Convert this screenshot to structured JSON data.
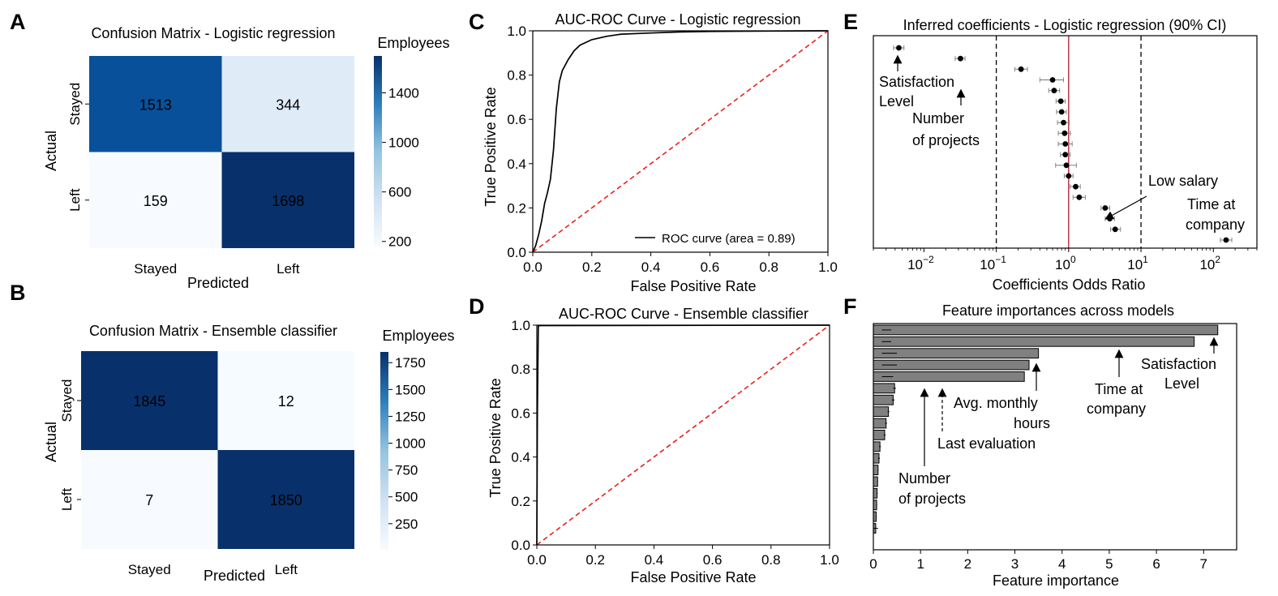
{
  "panels": {
    "A": {
      "label": "A",
      "title": "Confusion Matrix - Logistic regression",
      "xlabel": "Predicted",
      "ylabel": "Actual",
      "colorbar_label": "Employees",
      "colorbar_ticks": [
        "1400",
        "1000",
        "600",
        "200"
      ]
    },
    "B": {
      "label": "B",
      "title": "Confusion Matrix - Ensemble classifier",
      "xlabel": "Predicted",
      "ylabel": "Actual",
      "colorbar_label": "Employees",
      "colorbar_ticks": [
        "1750",
        "1500",
        "1250",
        "1000",
        "750",
        "500",
        "250"
      ]
    },
    "C": {
      "label": "C",
      "title": "AUC-ROC Curve - Logistic regression",
      "xlabel": "False Positive Rate",
      "ylabel": "True Positive Rate",
      "legend": "ROC curve (area = 0.89)"
    },
    "D": {
      "label": "D",
      "title": "AUC-ROC Curve - Ensemble classifier",
      "xlabel": "False Positive Rate",
      "ylabel": "True Positive Rate"
    },
    "E": {
      "label": "E",
      "title": "Inferred coefficients - Logistic regression (90% CI)",
      "xlabel": "Coefficients Odds Ratio",
      "annotations": [
        "Satisfaction",
        "Level",
        "Number",
        "of projects",
        "Low salary",
        "Time at",
        "company"
      ]
    },
    "F": {
      "label": "F",
      "title": "Feature importances across models",
      "xlabel": "Feature importance",
      "annotations": [
        "Satisfaction",
        "Level",
        "Time at",
        "company",
        "Avg. monthly",
        "hours",
        "Last evaluation",
        "Number",
        "of projects"
      ]
    }
  },
  "chart_data": [
    {
      "id": "A",
      "type": "heatmap",
      "title": "Confusion Matrix - Logistic regression",
      "xlabel": "Predicted",
      "ylabel": "Actual",
      "x_categories": [
        "Stayed",
        "Left"
      ],
      "y_categories": [
        "Stayed",
        "Left"
      ],
      "values": [
        [
          1513,
          344
        ],
        [
          159,
          1698
        ]
      ],
      "colorbar": {
        "label": "Employees",
        "range": [
          159,
          1698
        ],
        "ticks": [
          1400,
          1000,
          600,
          200
        ]
      },
      "colormap": "Blues"
    },
    {
      "id": "B",
      "type": "heatmap",
      "title": "Confusion Matrix - Ensemble classifier",
      "xlabel": "Predicted",
      "ylabel": "Actual",
      "x_categories": [
        "Stayed",
        "Left"
      ],
      "y_categories": [
        "Stayed",
        "Left"
      ],
      "values": [
        [
          1845,
          12
        ],
        [
          7,
          1850
        ]
      ],
      "colorbar": {
        "label": "Employees",
        "range": [
          7,
          1850
        ],
        "ticks": [
          1750,
          1500,
          1250,
          1000,
          750,
          500,
          250
        ]
      },
      "colormap": "Blues"
    },
    {
      "id": "C",
      "type": "line",
      "title": "AUC-ROC Curve - Logistic regression",
      "xlabel": "False Positive Rate",
      "ylabel": "True Positive Rate",
      "xlim": [
        0,
        1
      ],
      "ylim": [
        0,
        1
      ],
      "xticks": [
        0.0,
        0.2,
        0.4,
        0.6,
        0.8,
        1.0
      ],
      "yticks": [
        0.0,
        0.2,
        0.4,
        0.6,
        0.8,
        1.0
      ],
      "legend_position": "lower right",
      "series": [
        {
          "name": "ROC curve (area = 0.89)",
          "color": "#000000",
          "x": [
            0,
            0.01,
            0.02,
            0.03,
            0.04,
            0.05,
            0.06,
            0.07,
            0.08,
            0.09,
            0.1,
            0.12,
            0.14,
            0.16,
            0.2,
            0.25,
            0.3,
            0.4,
            0.5,
            0.6,
            0.8,
            1.0
          ],
          "y": [
            0,
            0.03,
            0.08,
            0.14,
            0.22,
            0.27,
            0.33,
            0.46,
            0.65,
            0.77,
            0.82,
            0.87,
            0.91,
            0.935,
            0.96,
            0.975,
            0.985,
            0.99,
            0.995,
            0.997,
            0.999,
            1.0
          ]
        },
        {
          "name": "",
          "style": "dashed",
          "color": "#e8201d",
          "x": [
            0,
            1
          ],
          "y": [
            0,
            1
          ]
        }
      ]
    },
    {
      "id": "D",
      "type": "line",
      "title": "AUC-ROC Curve - Ensemble classifier",
      "xlabel": "False Positive Rate",
      "ylabel": "True Positive Rate",
      "xlim": [
        0,
        1
      ],
      "ylim": [
        0,
        1
      ],
      "xticks": [
        0.0,
        0.2,
        0.4,
        0.6,
        0.8,
        1.0
      ],
      "yticks": [
        0.0,
        0.2,
        0.4,
        0.6,
        0.8,
        1.0
      ],
      "series": [
        {
          "name": "",
          "color": "#000000",
          "x": [
            0,
            0.002,
            0.005,
            0.01,
            1.0
          ],
          "y": [
            0,
            0.6,
            0.995,
            0.998,
            1.0
          ]
        },
        {
          "name": "",
          "style": "dashed",
          "color": "#e8201d",
          "x": [
            0,
            1
          ],
          "y": [
            0,
            1
          ]
        }
      ]
    },
    {
      "id": "E",
      "type": "scatter",
      "title": "Inferred coefficients - Logistic regression (90% CI)",
      "xlabel": "Coefficients Odds Ratio",
      "xscale": "log",
      "xlim": [
        0.002,
        400
      ],
      "xticks": [
        "10^-2",
        "10^-1",
        "10^0",
        "10^1",
        "10^2"
      ],
      "reference_lines": [
        {
          "x": 0.1,
          "style": "dashed",
          "color": "#000000"
        },
        {
          "x": 1,
          "style": "solid",
          "color": "#b2182b"
        },
        {
          "x": 10,
          "style": "dashed",
          "color": "#000000"
        }
      ],
      "points": [
        {
          "x": 0.0045,
          "lo": 0.0038,
          "hi": 0.0053
        },
        {
          "x": 0.032,
          "lo": 0.027,
          "hi": 0.037
        },
        {
          "x": 0.22,
          "lo": 0.18,
          "hi": 0.27
        },
        {
          "x": 0.6,
          "lo": 0.4,
          "hi": 0.85
        },
        {
          "x": 0.63,
          "lo": 0.53,
          "hi": 0.75
        },
        {
          "x": 0.78,
          "lo": 0.67,
          "hi": 0.9
        },
        {
          "x": 0.8,
          "lo": 0.68,
          "hi": 0.93
        },
        {
          "x": 0.85,
          "lo": 0.7,
          "hi": 1.02
        },
        {
          "x": 0.88,
          "lo": 0.72,
          "hi": 1.06
        },
        {
          "x": 0.9,
          "lo": 0.72,
          "hi": 1.12
        },
        {
          "x": 0.9,
          "lo": 0.77,
          "hi": 1.05
        },
        {
          "x": 0.93,
          "lo": 0.66,
          "hi": 1.28
        },
        {
          "x": 1.0,
          "lo": 0.87,
          "hi": 1.15
        },
        {
          "x": 1.25,
          "lo": 1.05,
          "hi": 1.45
        },
        {
          "x": 1.4,
          "lo": 1.15,
          "hi": 1.7
        },
        {
          "x": 3.2,
          "lo": 2.8,
          "hi": 3.7
        },
        {
          "x": 3.7,
          "lo": 3.2,
          "hi": 4.3
        },
        {
          "x": 4.4,
          "lo": 3.8,
          "hi": 5.2
        },
        {
          "x": 150,
          "lo": 125,
          "hi": 180
        }
      ]
    },
    {
      "id": "F",
      "type": "bar",
      "orientation": "horizontal",
      "title": "Feature importances across models",
      "xlabel": "Feature importance",
      "xlim": [
        0,
        7.7
      ],
      "xticks": [
        0,
        1,
        2,
        3,
        4,
        5,
        6,
        7
      ],
      "bar_color": "#808080",
      "values": [
        7.3,
        6.8,
        3.5,
        3.3,
        3.2,
        0.45,
        0.42,
        0.32,
        0.27,
        0.24,
        0.14,
        0.12,
        0.1,
        0.09,
        0.08,
        0.07,
        0.06,
        0.05
      ],
      "errors": [
        0.05,
        0.05,
        0.08,
        0.08,
        0.06,
        0.03,
        0.03,
        0.02,
        0.02,
        0.02,
        0.02,
        0.02,
        0.01,
        0.01,
        0.01,
        0.01,
        0.01,
        0.05
      ]
    }
  ]
}
